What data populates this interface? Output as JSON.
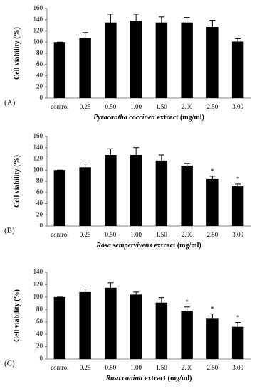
{
  "chart_data": [
    {
      "type": "bar",
      "panel": "(A)",
      "ylabel": "Cell viability (%)",
      "xlabel_italic": "Pyracantha coccinea",
      "xlabel": "extract (mg/ml)",
      "categories": [
        "control",
        "0.25",
        "0.50",
        "1.00",
        "1.50",
        "2.00",
        "2.50",
        "3.00"
      ],
      "values": [
        100,
        107,
        135,
        138,
        135,
        135,
        127,
        101
      ],
      "errors": [
        0,
        10,
        15,
        12,
        10,
        9,
        12,
        5
      ],
      "significant": [
        false,
        false,
        false,
        false,
        false,
        false,
        false,
        false
      ],
      "significance_label": "*",
      "color": "#000000",
      "ylim": [
        0,
        160
      ],
      "yticks": [
        0,
        20,
        40,
        60,
        80,
        100,
        120,
        140,
        160
      ]
    },
    {
      "type": "bar",
      "panel": "(B)",
      "ylabel": "Cell viability (%)",
      "xlabel_italic": "Rosa sempervivens",
      "xlabel": "extract (mg/ml)",
      "categories": [
        "control",
        "0.25",
        "0.50",
        "1.00",
        "1.50",
        "2.00",
        "2.50",
        "3.00"
      ],
      "values": [
        100,
        105,
        127,
        127,
        117,
        108,
        84,
        71
      ],
      "errors": [
        0,
        6,
        11,
        13,
        10,
        4,
        5,
        4
      ],
      "significant": [
        false,
        false,
        false,
        false,
        false,
        false,
        true,
        true
      ],
      "significance_label": "*",
      "color": "#000000",
      "ylim": [
        0,
        160
      ],
      "yticks": [
        0,
        20,
        40,
        60,
        80,
        100,
        120,
        140,
        160
      ]
    },
    {
      "type": "bar",
      "panel": "(C)",
      "ylabel": "Cell viability (%)",
      "xlabel_italic": "Rosa canina",
      "xlabel": "extract (mg/ml)",
      "categories": [
        "control",
        "0.25",
        "0.50",
        "1.00",
        "1.50",
        "2.00",
        "2.50",
        "3.00"
      ],
      "values": [
        100,
        108,
        115,
        104,
        91,
        78,
        65,
        52
      ],
      "errors": [
        0,
        5,
        8,
        4,
        8,
        6,
        8,
        7
      ],
      "significant": [
        false,
        false,
        false,
        false,
        false,
        true,
        true,
        true
      ],
      "significance_label": "*",
      "color": "#000000",
      "ylim": [
        0,
        140
      ],
      "yticks": [
        0,
        20,
        40,
        60,
        80,
        100,
        120,
        140
      ]
    }
  ]
}
